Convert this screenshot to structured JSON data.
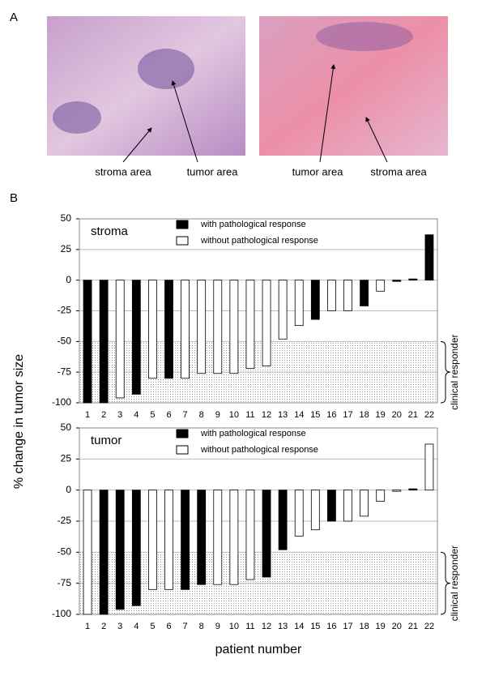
{
  "figure": {
    "panel_a": "A",
    "panel_b": "B",
    "y_label": "% change in tumor size",
    "x_label": "patient number",
    "image_labels": [
      "stroma area",
      "tumor area",
      "tumor area",
      "stroma area"
    ]
  },
  "chart_data": [
    {
      "type": "bar",
      "title": "stroma",
      "categories": [
        "1",
        "2",
        "3",
        "4",
        "5",
        "6",
        "7",
        "8",
        "9",
        "10",
        "11",
        "12",
        "13",
        "14",
        "15",
        "16",
        "17",
        "18",
        "19",
        "20",
        "21",
        "22"
      ],
      "series": [
        {
          "name": "with pathological response",
          "color": "#000000",
          "values": [
            -100,
            -100,
            null,
            -93,
            null,
            -80,
            null,
            null,
            null,
            null,
            null,
            null,
            null,
            null,
            -32,
            null,
            null,
            -21,
            null,
            -1,
            1,
            37
          ]
        },
        {
          "name": "without pathological response",
          "color": "#ffffff",
          "values": [
            null,
            null,
            -96,
            null,
            -80,
            null,
            -80,
            -76,
            -76,
            -76,
            -72,
            -70,
            -48,
            -37,
            null,
            -25,
            -25,
            null,
            -9,
            null,
            null,
            null
          ]
        }
      ],
      "ylim": [
        -100,
        50
      ],
      "yticks": [
        50,
        25,
        0,
        -25,
        -50,
        -75,
        -100
      ],
      "grid": true,
      "responder_band": [
        -100,
        -50
      ],
      "annotation": "clinical responder"
    },
    {
      "type": "bar",
      "title": "tumor",
      "categories": [
        "1",
        "2",
        "3",
        "4",
        "5",
        "6",
        "7",
        "8",
        "9",
        "10",
        "11",
        "12",
        "13",
        "14",
        "15",
        "16",
        "17",
        "18",
        "19",
        "20",
        "21",
        "22"
      ],
      "series": [
        {
          "name": "with pathological response",
          "color": "#000000",
          "values": [
            null,
            -100,
            -96,
            -93,
            null,
            null,
            -80,
            -76,
            null,
            null,
            null,
            -70,
            -48,
            null,
            null,
            -25,
            null,
            null,
            null,
            null,
            1,
            null
          ]
        },
        {
          "name": "without pathological response",
          "color": "#ffffff",
          "values": [
            -100,
            null,
            null,
            null,
            -80,
            -80,
            null,
            null,
            -76,
            -76,
            -72,
            null,
            null,
            -37,
            -32,
            null,
            -25,
            -21,
            -9,
            -1,
            null,
            37
          ]
        }
      ],
      "ylim": [
        -100,
        50
      ],
      "yticks": [
        50,
        25,
        0,
        -25,
        -50,
        -75,
        -100
      ],
      "grid": true,
      "responder_band": [
        -100,
        -50
      ],
      "annotation": "clinical responder"
    }
  ]
}
